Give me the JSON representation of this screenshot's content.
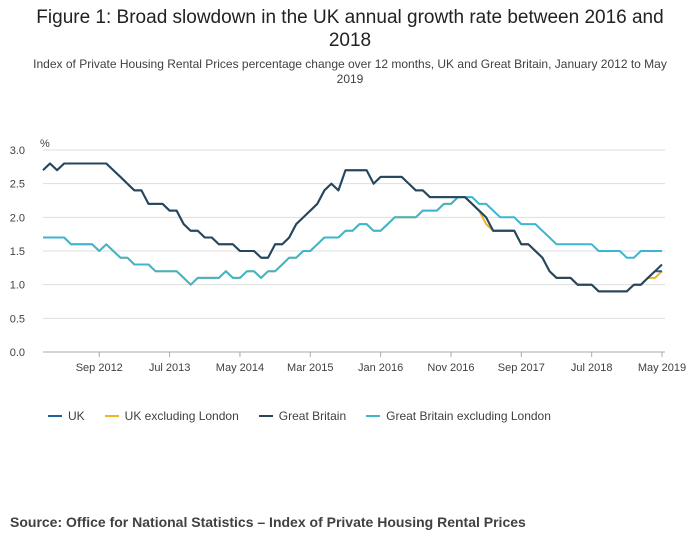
{
  "header": {
    "title": "Figure 1: Broad slowdown in the UK annual growth rate between 2016 and 2018",
    "subtitle": "Index of Private Housing Rental Prices percentage change over 12 months, UK and Great Britain, January 2012 to May 2019"
  },
  "footer": {
    "source": "Source: Office for National Statistics – Index of Private Housing Rental Prices"
  },
  "colors": {
    "uk": "#206095",
    "uk_ex_london": "#f0b323",
    "gb": "#27455b",
    "gb_ex_london": "#3db5d0",
    "grid": "#dddddd",
    "axis": "#aaaaaa"
  },
  "chart_data": {
    "type": "line",
    "ylabel": "%",
    "ylim": [
      0,
      3
    ],
    "yticks": [
      "0.0",
      "0.5",
      "1.0",
      "1.5",
      "2.0",
      "2.5",
      "3.0"
    ],
    "xticks": [
      "Sep 2012",
      "Jul 2013",
      "May 2014",
      "Mar 2015",
      "Jan 2016",
      "Nov 2016",
      "Sep 2017",
      "Jul 2018",
      "May 2019"
    ],
    "x_start": "Jan 2012",
    "x_end": "May 2019",
    "grid": true,
    "legend_position": "bottom",
    "series": [
      {
        "name": "UK",
        "color_key": "uk",
        "values": [
          2.7,
          2.8,
          2.7,
          2.8,
          2.8,
          2.8,
          2.8,
          2.8,
          2.8,
          2.8,
          2.7,
          2.6,
          2.5,
          2.4,
          2.4,
          2.2,
          2.2,
          2.2,
          2.1,
          2.1,
          1.9,
          1.8,
          1.8,
          1.7,
          1.7,
          1.6,
          1.6,
          1.6,
          1.5,
          1.5,
          1.5,
          1.4,
          1.4,
          1.6,
          1.6,
          1.7,
          1.9,
          2.0,
          2.1,
          2.2,
          2.4,
          2.5,
          2.4,
          2.7,
          2.7,
          2.7,
          2.7,
          2.5,
          2.6,
          2.6,
          2.6,
          2.6,
          2.5,
          2.4,
          2.4,
          2.3,
          2.3,
          2.3,
          2.3,
          2.3,
          2.3,
          2.2,
          2.1,
          2.0,
          1.8,
          1.8,
          1.8,
          1.8,
          1.6,
          1.6,
          1.5,
          1.4,
          1.2,
          1.1,
          1.1,
          1.1,
          1.0,
          1.0,
          1.0,
          0.9,
          0.9,
          0.9,
          0.9,
          0.9,
          1.0,
          1.0,
          1.1,
          1.2,
          1.2
        ]
      },
      {
        "name": "UK excluding London",
        "color_key": "uk_ex_london",
        "values": [
          1.7,
          1.7,
          1.7,
          1.7,
          1.6,
          1.6,
          1.6,
          1.6,
          1.5,
          1.6,
          1.5,
          1.4,
          1.4,
          1.3,
          1.3,
          1.3,
          1.2,
          1.2,
          1.2,
          1.2,
          1.1,
          1.0,
          1.1,
          1.1,
          1.1,
          1.1,
          1.2,
          1.1,
          1.1,
          1.2,
          1.2,
          1.1,
          1.2,
          1.2,
          1.3,
          1.4,
          1.4,
          1.5,
          1.5,
          1.6,
          1.7,
          1.7,
          1.7,
          1.8,
          1.8,
          1.9,
          1.9,
          1.8,
          1.8,
          1.9,
          2.0,
          2.0,
          2.0,
          2.0,
          2.1,
          2.1,
          2.1,
          2.2,
          2.2,
          2.3,
          2.3,
          2.2,
          2.1,
          1.9,
          1.8,
          1.8,
          1.8,
          1.8,
          1.6,
          1.6,
          1.5,
          1.4,
          1.2,
          1.1,
          1.1,
          1.1,
          1.0,
          1.0,
          1.0,
          0.9,
          0.9,
          0.9,
          0.9,
          0.9,
          1.0,
          1.0,
          1.1,
          1.1,
          1.2
        ]
      },
      {
        "name": "Great Britain",
        "color_key": "gb",
        "values": [
          2.7,
          2.8,
          2.7,
          2.8,
          2.8,
          2.8,
          2.8,
          2.8,
          2.8,
          2.8,
          2.7,
          2.6,
          2.5,
          2.4,
          2.4,
          2.2,
          2.2,
          2.2,
          2.1,
          2.1,
          1.9,
          1.8,
          1.8,
          1.7,
          1.7,
          1.6,
          1.6,
          1.6,
          1.5,
          1.5,
          1.5,
          1.4,
          1.4,
          1.6,
          1.6,
          1.7,
          1.9,
          2.0,
          2.1,
          2.2,
          2.4,
          2.5,
          2.4,
          2.7,
          2.7,
          2.7,
          2.7,
          2.5,
          2.6,
          2.6,
          2.6,
          2.6,
          2.5,
          2.4,
          2.4,
          2.3,
          2.3,
          2.3,
          2.3,
          2.3,
          2.3,
          2.2,
          2.1,
          2.0,
          1.8,
          1.8,
          1.8,
          1.8,
          1.6,
          1.6,
          1.5,
          1.4,
          1.2,
          1.1,
          1.1,
          1.1,
          1.0,
          1.0,
          1.0,
          0.9,
          0.9,
          0.9,
          0.9,
          0.9,
          1.0,
          1.0,
          1.1,
          1.2,
          1.3
        ]
      },
      {
        "name": "Great Britain excluding London",
        "color_key": "gb_ex_london",
        "values": [
          1.7,
          1.7,
          1.7,
          1.7,
          1.6,
          1.6,
          1.6,
          1.6,
          1.5,
          1.6,
          1.5,
          1.4,
          1.4,
          1.3,
          1.3,
          1.3,
          1.2,
          1.2,
          1.2,
          1.2,
          1.1,
          1.0,
          1.1,
          1.1,
          1.1,
          1.1,
          1.2,
          1.1,
          1.1,
          1.2,
          1.2,
          1.1,
          1.2,
          1.2,
          1.3,
          1.4,
          1.4,
          1.5,
          1.5,
          1.6,
          1.7,
          1.7,
          1.7,
          1.8,
          1.8,
          1.9,
          1.9,
          1.8,
          1.8,
          1.9,
          2.0,
          2.0,
          2.0,
          2.0,
          2.1,
          2.1,
          2.1,
          2.2,
          2.2,
          2.3,
          2.3,
          2.3,
          2.2,
          2.2,
          2.1,
          2.0,
          2.0,
          2.0,
          1.9,
          1.9,
          1.9,
          1.8,
          1.7,
          1.6,
          1.6,
          1.6,
          1.6,
          1.6,
          1.6,
          1.5,
          1.5,
          1.5,
          1.5,
          1.4,
          1.4,
          1.5,
          1.5,
          1.5,
          1.5
        ]
      }
    ]
  }
}
